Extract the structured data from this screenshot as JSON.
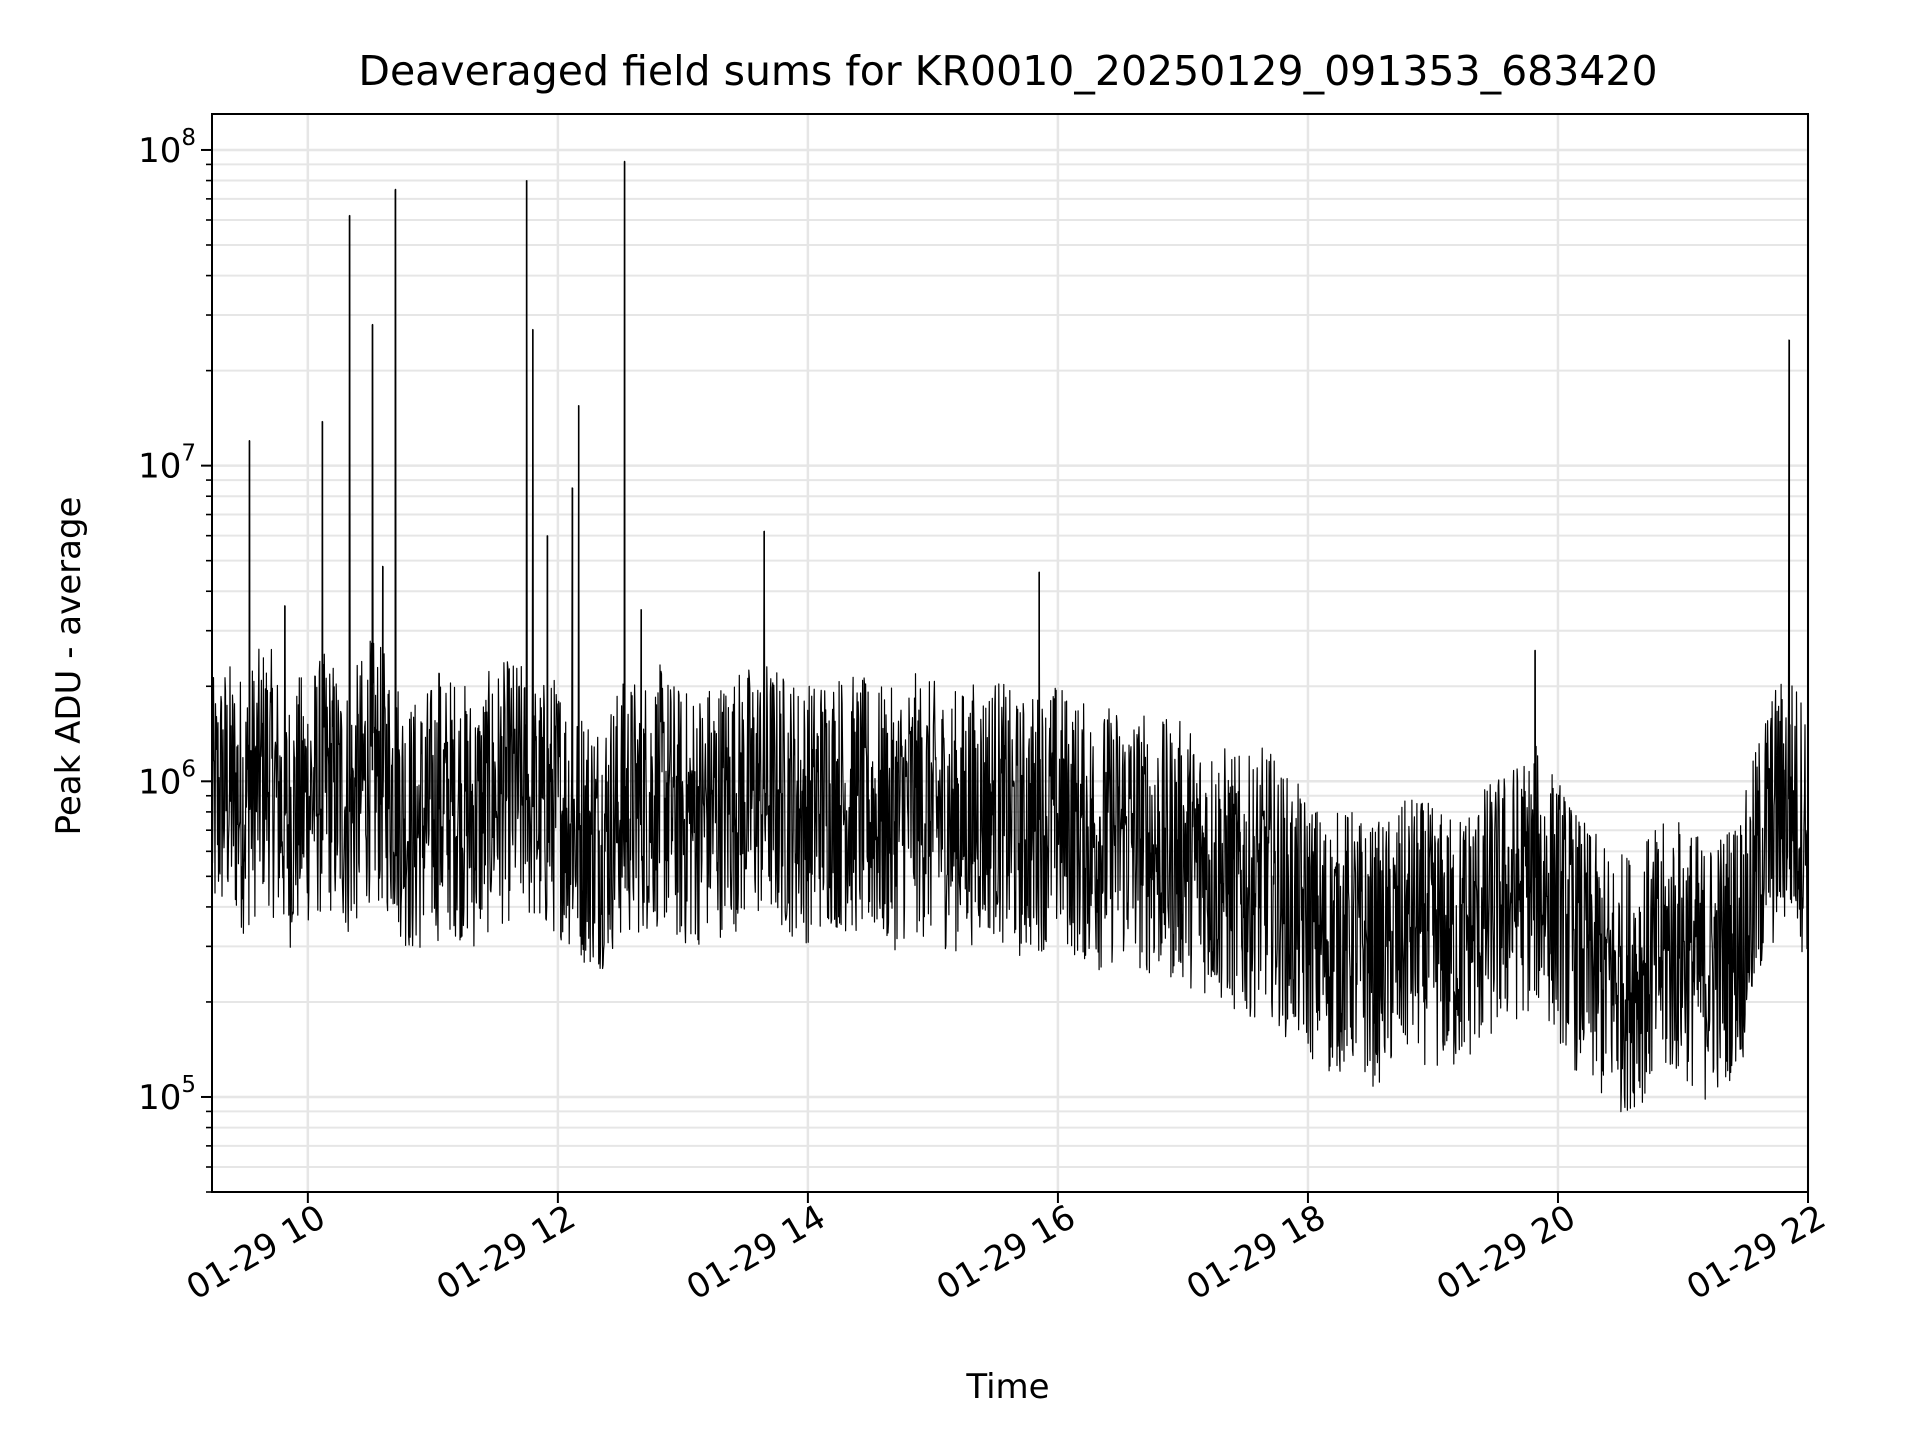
{
  "chart_data": {
    "type": "line",
    "title": "Deaveraged field sums for KR0010_20250129_091353_683420",
    "xlabel": "Time",
    "ylabel": "Peak ADU - average",
    "yscale": "log",
    "grid": true,
    "legend": "none",
    "line_color": "#000000",
    "grid_color": "#e6e6e6",
    "x_range": [
      "2025-01-29 09:14",
      "2025-01-29 22:00"
    ],
    "ylim": [
      50000,
      130000000
    ],
    "x_ticks": [
      {
        "value": "2025-01-29 10:00",
        "label": "01-29 10"
      },
      {
        "value": "2025-01-29 12:00",
        "label": "01-29 12"
      },
      {
        "value": "2025-01-29 14:00",
        "label": "01-29 14"
      },
      {
        "value": "2025-01-29 16:00",
        "label": "01-29 16"
      },
      {
        "value": "2025-01-29 18:00",
        "label": "01-29 18"
      },
      {
        "value": "2025-01-29 20:00",
        "label": "01-29 20"
      },
      {
        "value": "2025-01-29 22:00",
        "label": "01-29 22"
      }
    ],
    "y_ticks": [
      {
        "value": 100000,
        "base": "10",
        "exp": "5"
      },
      {
        "value": 1000000,
        "base": "10",
        "exp": "6"
      },
      {
        "value": 10000000,
        "base": "10",
        "exp": "7"
      },
      {
        "value": 100000000,
        "base": "10",
        "exp": "8"
      }
    ],
    "series": [
      {
        "x": [
          "2025-01-29 09:14",
          "2025-01-29 09:20",
          "2025-01-29 09:30",
          "2025-01-29 09:40",
          "2025-01-29 09:50",
          "2025-01-29 10:00",
          "2025-01-29 10:10",
          "2025-01-29 10:20",
          "2025-01-29 10:30",
          "2025-01-29 10:40",
          "2025-01-29 10:50",
          "2025-01-29 11:00",
          "2025-01-29 11:10",
          "2025-01-29 11:20",
          "2025-01-29 11:30",
          "2025-01-29 11:40",
          "2025-01-29 11:50",
          "2025-01-29 12:00",
          "2025-01-29 12:10",
          "2025-01-29 12:20",
          "2025-01-29 12:30",
          "2025-01-29 12:40",
          "2025-01-29 12:50",
          "2025-01-29 13:00",
          "2025-01-29 13:10",
          "2025-01-29 13:20",
          "2025-01-29 13:30",
          "2025-01-29 13:40",
          "2025-01-29 13:50",
          "2025-01-29 14:00",
          "2025-01-29 14:10",
          "2025-01-29 14:20",
          "2025-01-29 14:30",
          "2025-01-29 14:40",
          "2025-01-29 14:50",
          "2025-01-29 15:00",
          "2025-01-29 15:10",
          "2025-01-29 15:20",
          "2025-01-29 15:30",
          "2025-01-29 15:40",
          "2025-01-29 15:50",
          "2025-01-29 16:00",
          "2025-01-29 16:10",
          "2025-01-29 16:20",
          "2025-01-29 16:30",
          "2025-01-29 16:40",
          "2025-01-29 16:50",
          "2025-01-29 17:00",
          "2025-01-29 17:10",
          "2025-01-29 17:20",
          "2025-01-29 17:30",
          "2025-01-29 17:40",
          "2025-01-29 17:50",
          "2025-01-29 18:00",
          "2025-01-29 18:10",
          "2025-01-29 18:20",
          "2025-01-29 18:30",
          "2025-01-29 18:40",
          "2025-01-29 18:50",
          "2025-01-29 19:00",
          "2025-01-29 19:10",
          "2025-01-29 19:20",
          "2025-01-29 19:30",
          "2025-01-29 19:40",
          "2025-01-29 19:50",
          "2025-01-29 20:00",
          "2025-01-29 20:10",
          "2025-01-29 20:20",
          "2025-01-29 20:30",
          "2025-01-29 20:40",
          "2025-01-29 20:50",
          "2025-01-29 21:00",
          "2025-01-29 21:10",
          "2025-01-29 21:20",
          "2025-01-29 21:30",
          "2025-01-29 21:40",
          "2025-01-29 21:50",
          "2025-01-29 22:00"
        ],
        "y": [
          800000,
          950000,
          850000,
          1100000,
          750000,
          900000,
          1000000,
          800000,
          1100000,
          950000,
          700000,
          800000,
          850000,
          750000,
          900000,
          950000,
          800000,
          850000,
          700000,
          650000,
          800000,
          850000,
          900000,
          750000,
          800000,
          850000,
          900000,
          950000,
          850000,
          800000,
          900000,
          850000,
          800000,
          750000,
          850000,
          800000,
          750000,
          800000,
          850000,
          700000,
          750000,
          800000,
          700000,
          650000,
          700000,
          650000,
          600000,
          600000,
          550000,
          500000,
          450000,
          500000,
          400000,
          350000,
          300000,
          320000,
          280000,
          300000,
          350000,
          320000,
          300000,
          350000,
          400000,
          450000,
          500000,
          400000,
          300000,
          250000,
          230000,
          250000,
          280000,
          300000,
          250000,
          280000,
          350000,
          700000,
          900000,
          700000
        ],
        "spikes": [
          {
            "x": "2025-01-29 09:32",
            "y": 12000000
          },
          {
            "x": "2025-01-29 09:49",
            "y": 3600000
          },
          {
            "x": "2025-01-29 10:07",
            "y": 13800000
          },
          {
            "x": "2025-01-29 10:20",
            "y": 62000000
          },
          {
            "x": "2025-01-29 10:31",
            "y": 28000000
          },
          {
            "x": "2025-01-29 10:36",
            "y": 4800000
          },
          {
            "x": "2025-01-29 10:42",
            "y": 75000000
          },
          {
            "x": "2025-01-29 11:03",
            "y": 2200000
          },
          {
            "x": "2025-01-29 11:45",
            "y": 80000000
          },
          {
            "x": "2025-01-29 11:48",
            "y": 27000000
          },
          {
            "x": "2025-01-29 11:55",
            "y": 6000000
          },
          {
            "x": "2025-01-29 12:07",
            "y": 8500000
          },
          {
            "x": "2025-01-29 12:10",
            "y": 15500000
          },
          {
            "x": "2025-01-29 12:32",
            "y": 92000000
          },
          {
            "x": "2025-01-29 12:40",
            "y": 3500000
          },
          {
            "x": "2025-01-29 13:39",
            "y": 6200000
          },
          {
            "x": "2025-01-29 15:51",
            "y": 4600000
          },
          {
            "x": "2025-01-29 19:49",
            "y": 2600000
          },
          {
            "x": "2025-01-29 21:51",
            "y": 25000000
          }
        ]
      }
    ]
  }
}
